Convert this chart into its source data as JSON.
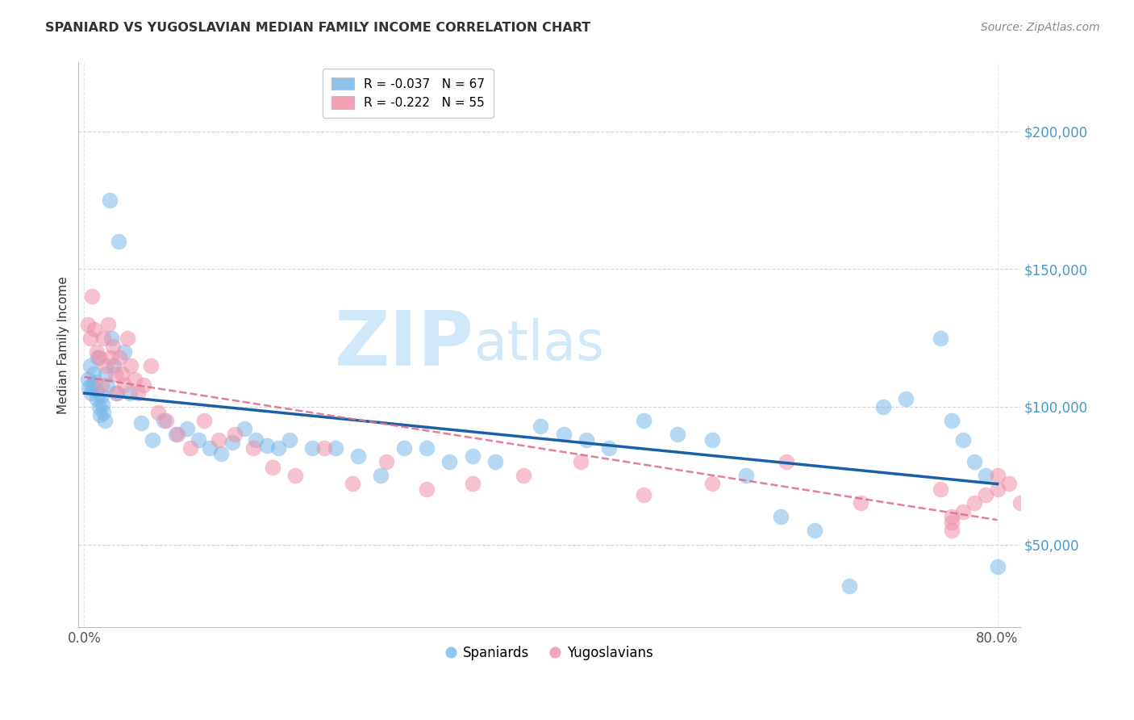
{
  "title": "SPANIARD VS YUGOSLAVIAN MEDIAN FAMILY INCOME CORRELATION CHART",
  "source": "Source: ZipAtlas.com",
  "ylabel": "Median Family Income",
  "xlim": [
    -0.005,
    0.82
  ],
  "ylim": [
    20000,
    225000
  ],
  "yticks": [
    50000,
    100000,
    150000,
    200000
  ],
  "ytick_labels": [
    "$50,000",
    "$100,000",
    "$150,000",
    "$200,000"
  ],
  "xtick_labels": [
    "0.0%",
    "80.0%"
  ],
  "xtick_pos": [
    0.0,
    0.8
  ],
  "legend_entries": [
    {
      "label": "R = -0.037   N = 67",
      "color": "#a8c8f0"
    },
    {
      "label": "R = -0.222   N = 55",
      "color": "#f4a0b0"
    }
  ],
  "blue_color": "#7ab8e8",
  "pink_color": "#f090a8",
  "blue_line_color": "#1a5fa8",
  "pink_line_color": "#e07090",
  "grid_color": "#d0d0d0",
  "axis_color": "#4499cc",
  "watermark_zip": "ZIP",
  "watermark_atlas": "atlas",
  "watermark_color": "#d0e8f8",
  "background_color": "#ffffff",
  "spaniards_x": [
    0.003,
    0.004,
    0.005,
    0.006,
    0.007,
    0.008,
    0.009,
    0.01,
    0.011,
    0.012,
    0.013,
    0.014,
    0.015,
    0.016,
    0.017,
    0.018,
    0.019,
    0.02,
    0.022,
    0.024,
    0.026,
    0.028,
    0.03,
    0.035,
    0.04,
    0.05,
    0.06,
    0.07,
    0.08,
    0.09,
    0.1,
    0.11,
    0.12,
    0.13,
    0.14,
    0.15,
    0.16,
    0.17,
    0.18,
    0.2,
    0.22,
    0.24,
    0.26,
    0.28,
    0.3,
    0.32,
    0.34,
    0.36,
    0.4,
    0.42,
    0.44,
    0.46,
    0.49,
    0.52,
    0.55,
    0.58,
    0.61,
    0.64,
    0.67,
    0.7,
    0.72,
    0.75,
    0.76,
    0.77,
    0.78,
    0.79,
    0.8
  ],
  "spaniards_y": [
    110000,
    107000,
    115000,
    105000,
    108000,
    112000,
    109000,
    106000,
    103000,
    118000,
    100000,
    97000,
    104000,
    101000,
    98000,
    95000,
    112000,
    108000,
    175000,
    125000,
    115000,
    105000,
    160000,
    120000,
    105000,
    94000,
    88000,
    95000,
    90000,
    92000,
    88000,
    85000,
    83000,
    87000,
    92000,
    88000,
    86000,
    85000,
    88000,
    85000,
    85000,
    82000,
    75000,
    85000,
    85000,
    80000,
    82000,
    80000,
    93000,
    90000,
    88000,
    85000,
    95000,
    90000,
    88000,
    75000,
    60000,
    55000,
    35000,
    100000,
    103000,
    125000,
    95000,
    88000,
    80000,
    75000,
    42000
  ],
  "yugoslavians_x": [
    0.003,
    0.005,
    0.007,
    0.009,
    0.011,
    0.013,
    0.015,
    0.017,
    0.019,
    0.021,
    0.023,
    0.025,
    0.027,
    0.029,
    0.031,
    0.033,
    0.035,
    0.038,
    0.041,
    0.044,
    0.047,
    0.052,
    0.058,
    0.065,
    0.072,
    0.082,
    0.093,
    0.105,
    0.118,
    0.132,
    0.148,
    0.165,
    0.185,
    0.21,
    0.235,
    0.265,
    0.3,
    0.34,
    0.385,
    0.435,
    0.49,
    0.55,
    0.615,
    0.68,
    0.75,
    0.8,
    0.81,
    0.82,
    0.8,
    0.79,
    0.78,
    0.77,
    0.76,
    0.76,
    0.76
  ],
  "yugoslavians_y": [
    130000,
    125000,
    140000,
    128000,
    120000,
    118000,
    108000,
    125000,
    115000,
    130000,
    118000,
    122000,
    112000,
    105000,
    118000,
    112000,
    108000,
    125000,
    115000,
    110000,
    105000,
    108000,
    115000,
    98000,
    95000,
    90000,
    85000,
    95000,
    88000,
    90000,
    85000,
    78000,
    75000,
    85000,
    72000,
    80000,
    70000,
    72000,
    75000,
    80000,
    68000,
    72000,
    80000,
    65000,
    70000,
    75000,
    72000,
    65000,
    70000,
    68000,
    65000,
    62000,
    60000,
    58000,
    55000
  ]
}
